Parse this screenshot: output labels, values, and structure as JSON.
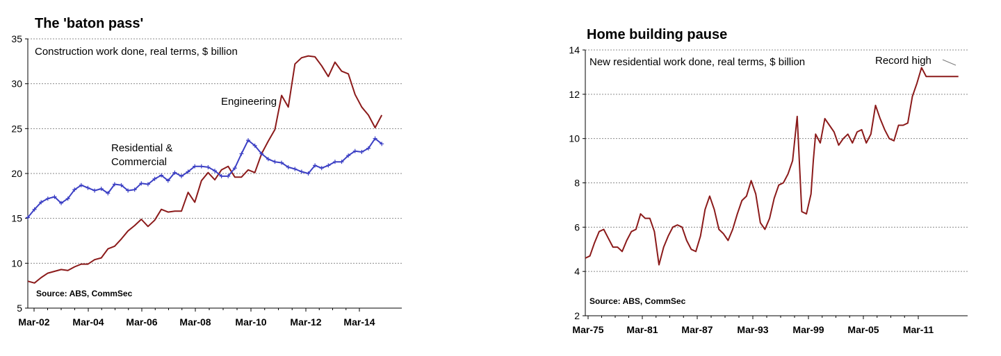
{
  "chart_data": [
    {
      "type": "line",
      "title": "The 'baton pass'",
      "subtitle": "Construction work done, real terms, $ billion",
      "source": "Source: ABS, CommSec",
      "ylim": [
        5,
        35
      ],
      "yticks": [
        "35",
        "30",
        "25",
        "20",
        "15",
        "10",
        "5"
      ],
      "xlim": [
        2002.0,
        2016.0
      ],
      "xticks": [
        "Mar-02",
        "Mar-04",
        "Mar-06",
        "Mar-08",
        "Mar-10",
        "Mar-12",
        "Mar-14"
      ],
      "grid": true,
      "annotations": [
        {
          "text": "Engineering"
        },
        {
          "text": "Residential &"
        },
        {
          "text": "Commercial"
        }
      ],
      "series": [
        {
          "name": "Residential & Commercial",
          "color": "#3b3fc4",
          "marker": "cross",
          "x": [
            2002.0,
            2002.25,
            2002.5,
            2002.75,
            2003.0,
            2003.25,
            2003.5,
            2003.75,
            2004.0,
            2004.25,
            2004.5,
            2004.75,
            2005.0,
            2005.25,
            2005.5,
            2005.75,
            2006.0,
            2006.25,
            2006.5,
            2006.75,
            2007.0,
            2007.25,
            2007.5,
            2007.75,
            2008.0,
            2008.25,
            2008.5,
            2008.75,
            2009.0,
            2009.25,
            2009.5,
            2009.75,
            2010.0,
            2010.25,
            2010.5,
            2010.75,
            2011.0,
            2011.25,
            2011.5,
            2011.75,
            2012.0,
            2012.25,
            2012.5,
            2012.75,
            2013.0,
            2013.25,
            2013.5,
            2013.75,
            2014.0,
            2014.25,
            2014.5,
            2014.75,
            2015.0,
            2015.25
          ],
          "y": [
            15.1,
            16.0,
            16.8,
            17.2,
            17.4,
            16.7,
            17.2,
            18.2,
            18.7,
            18.4,
            18.1,
            18.3,
            17.8,
            18.8,
            18.7,
            18.1,
            18.2,
            18.9,
            18.8,
            19.4,
            19.8,
            19.2,
            20.1,
            19.7,
            20.2,
            20.8,
            20.8,
            20.7,
            20.3,
            19.7,
            19.7,
            20.6,
            22.2,
            23.7,
            23.1,
            22.2,
            21.6,
            21.3,
            21.2,
            20.7,
            20.5,
            20.2,
            20.0,
            20.9,
            20.6,
            20.9,
            21.3,
            21.3,
            22.0,
            22.5,
            22.4,
            22.8,
            23.9,
            23.3
          ]
        },
        {
          "name": "Engineering",
          "color": "#8b1a1a",
          "marker": "none",
          "x": [
            2002.0,
            2002.25,
            2002.5,
            2002.75,
            2003.0,
            2003.25,
            2003.5,
            2003.75,
            2004.0,
            2004.25,
            2004.5,
            2004.75,
            2005.0,
            2005.25,
            2005.5,
            2005.75,
            2006.0,
            2006.25,
            2006.5,
            2006.75,
            2007.0,
            2007.25,
            2007.5,
            2007.75,
            2008.0,
            2008.25,
            2008.5,
            2008.75,
            2009.0,
            2009.25,
            2009.5,
            2009.75,
            2010.0,
            2010.25,
            2010.5,
            2010.75,
            2011.0,
            2011.25,
            2011.5,
            2011.75,
            2012.0,
            2012.25,
            2012.5,
            2012.75,
            2013.0,
            2013.25,
            2013.5,
            2013.75,
            2014.0,
            2014.25,
            2014.5,
            2014.75,
            2015.0,
            2015.25
          ],
          "y": [
            8.0,
            7.8,
            8.4,
            8.9,
            9.1,
            9.3,
            9.2,
            9.6,
            9.9,
            9.9,
            10.4,
            10.6,
            11.6,
            11.9,
            12.7,
            13.6,
            14.2,
            14.9,
            14.1,
            14.8,
            16.0,
            15.7,
            15.8,
            15.8,
            17.9,
            16.8,
            19.2,
            20.1,
            19.3,
            20.4,
            20.8,
            19.6,
            19.6,
            20.4,
            20.1,
            22.2,
            23.6,
            24.9,
            28.7,
            27.4,
            32.2,
            32.9,
            33.1,
            33.0,
            32.0,
            30.8,
            32.4,
            31.4,
            31.1,
            28.8,
            27.4,
            26.5,
            25.1,
            26.5
          ]
        }
      ]
    },
    {
      "type": "line",
      "title": "Home building pause",
      "subtitle": "New residential work done, real terms, $ billion",
      "source": "Source: ABS, CommSec",
      "ylim": [
        2,
        14
      ],
      "yticks": [
        "14",
        "12",
        "10",
        "8",
        "6",
        "4",
        "2"
      ],
      "xlim": [
        1975.0,
        2016.5
      ],
      "xticks": [
        "Mar-75",
        "Mar-81",
        "Mar-87",
        "Mar-93",
        "Mar-99",
        "Mar-05",
        "Mar-11"
      ],
      "grid": true,
      "annotations": [
        {
          "text": "Record high"
        }
      ],
      "series": [
        {
          "name": "New residential work done",
          "color": "#8b1a1a",
          "marker": "none",
          "x": [
            1975.0,
            1975.5,
            1976.0,
            1976.5,
            1977.0,
            1977.5,
            1978.0,
            1978.5,
            1979.0,
            1979.5,
            1980.0,
            1980.5,
            1981.0,
            1981.5,
            1982.0,
            1982.5,
            1983.0,
            1983.5,
            1984.0,
            1984.5,
            1985.0,
            1985.5,
            1986.0,
            1986.5,
            1987.0,
            1987.5,
            1988.0,
            1988.5,
            1989.0,
            1989.5,
            1990.0,
            1990.5,
            1991.0,
            1991.5,
            1992.0,
            1992.5,
            1993.0,
            1993.5,
            1994.0,
            1994.5,
            1995.0,
            1995.5,
            1996.0,
            1996.5,
            1997.0,
            1997.5,
            1998.0,
            1998.5,
            1999.0,
            1999.5,
            1999.75,
            2000.0,
            2000.5,
            2001.0,
            2001.5,
            2002.0,
            2002.5,
            2003.0,
            2003.5,
            2004.0,
            2004.5,
            2005.0,
            2005.5,
            2006.0,
            2006.5,
            2007.0,
            2007.5,
            2008.0,
            2008.5,
            2009.0,
            2009.5,
            2010.0,
            2010.5,
            2011.0,
            2011.5,
            2012.0,
            2012.5,
            2013.0,
            2013.5,
            2014.0,
            2014.5,
            2015.0,
            2015.25,
            2015.5
          ],
          "y": [
            4.6,
            4.7,
            5.3,
            5.8,
            5.9,
            5.5,
            5.1,
            5.1,
            4.9,
            5.4,
            5.8,
            5.9,
            6.6,
            6.4,
            6.4,
            5.8,
            4.3,
            5.1,
            5.6,
            6.0,
            6.1,
            6.0,
            5.4,
            5.0,
            4.9,
            5.6,
            6.8,
            7.4,
            6.8,
            5.9,
            5.7,
            5.4,
            5.9,
            6.6,
            7.2,
            7.4,
            8.1,
            7.5,
            6.2,
            5.9,
            6.4,
            7.3,
            7.9,
            8.0,
            8.4,
            9.0,
            11.0,
            6.7,
            6.6,
            7.5,
            9.0,
            10.2,
            9.8,
            10.9,
            10.6,
            10.3,
            9.7,
            10.0,
            10.2,
            9.8,
            10.3,
            10.4,
            9.8,
            10.2,
            11.5,
            10.9,
            10.4,
            10.0,
            9.9,
            10.6,
            10.6,
            10.7,
            11.9,
            12.5,
            13.2,
            12.8,
            12.8,
            12.8,
            12.8,
            12.8,
            12.8,
            12.8,
            12.8,
            12.8
          ]
        }
      ]
    }
  ]
}
